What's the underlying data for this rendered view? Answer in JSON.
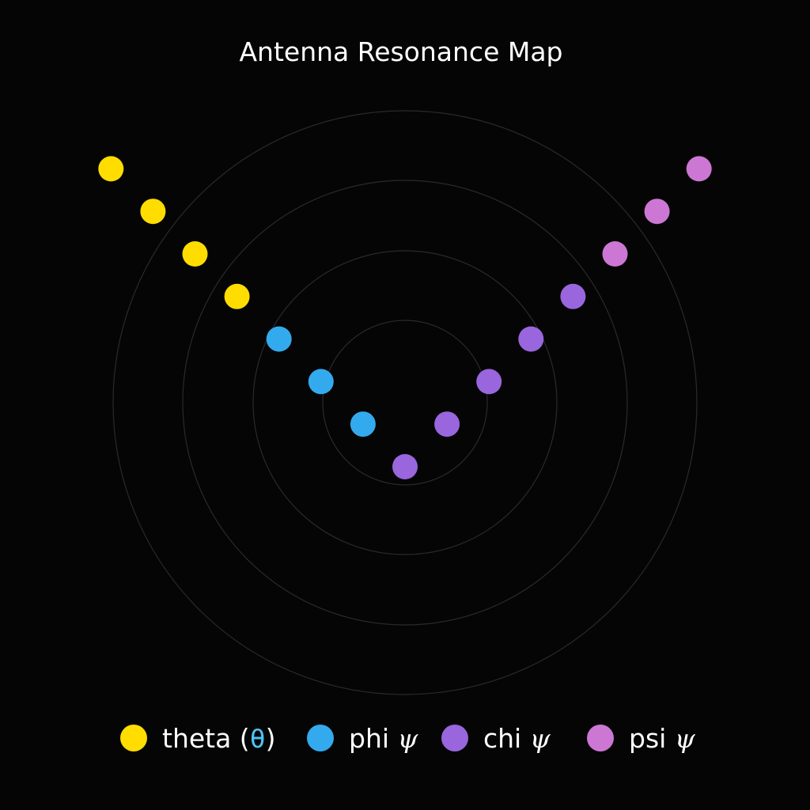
{
  "chart_data": {
    "type": "scatter",
    "title": "Antenna Resonance Map",
    "grid": true,
    "grid_style": "concentric-rings",
    "ring_count": 4,
    "legend_placement": "bottom",
    "xlim": [
      -7.5,
      7.5
    ],
    "ylim": [
      -1.5,
      7.5
    ],
    "series": [
      {
        "name": "theta",
        "legend_prefix": "theta (",
        "legend_symbol": "θ",
        "legend_suffix": ")",
        "color": "#ffdd00",
        "points": [
          {
            "x": -7,
            "y": 7
          },
          {
            "x": -6,
            "y": 6
          },
          {
            "x": -5,
            "y": 5
          },
          {
            "x": -4,
            "y": 4
          }
        ]
      },
      {
        "name": "phi",
        "legend_prefix": "phi ",
        "legend_symbol": "ψ",
        "legend_suffix": "",
        "color": "#33aaee",
        "points": [
          {
            "x": -3,
            "y": 3
          },
          {
            "x": -2,
            "y": 2
          },
          {
            "x": -1,
            "y": 1
          }
        ]
      },
      {
        "name": "chi",
        "legend_prefix": "chi ",
        "legend_symbol": "ψ",
        "legend_suffix": "",
        "color": "#9966dd",
        "points": [
          {
            "x": 0,
            "y": 0
          },
          {
            "x": 1,
            "y": 1
          },
          {
            "x": 2,
            "y": 2
          },
          {
            "x": 3,
            "y": 3
          },
          {
            "x": 4,
            "y": 4
          }
        ]
      },
      {
        "name": "psi",
        "legend_prefix": "psi ",
        "legend_symbol": "ψ",
        "legend_suffix": "",
        "color": "#cc77d4",
        "points": [
          {
            "x": 5,
            "y": 5
          },
          {
            "x": 6,
            "y": 6
          },
          {
            "x": 7,
            "y": 7
          }
        ]
      }
    ]
  }
}
